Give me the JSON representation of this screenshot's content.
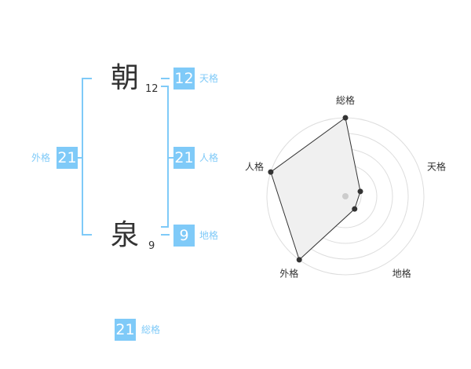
{
  "name": {
    "chars": [
      {
        "char": "朝",
        "strokes": "12"
      },
      {
        "char": "泉",
        "strokes": "9"
      }
    ]
  },
  "scores": {
    "tenkaku": {
      "label": "天格",
      "value": "12"
    },
    "jinkaku": {
      "label": "人格",
      "value": "21"
    },
    "chikaku": {
      "label": "地格",
      "value": "9"
    },
    "gaikaku": {
      "label": "外格",
      "value": "21"
    },
    "soukaku": {
      "label": "総格",
      "value": "21"
    }
  },
  "colors": {
    "accent": "#7fcaf8",
    "radar_fill": "#f0f0f0",
    "radar_line": "#333333"
  },
  "chart_data": {
    "type": "radar",
    "axes": [
      "総格",
      "天格",
      "地格",
      "外格",
      "人格"
    ],
    "values": [
      5,
      1,
      1,
      5,
      5
    ],
    "range": [
      0,
      5
    ],
    "rings": 5
  }
}
